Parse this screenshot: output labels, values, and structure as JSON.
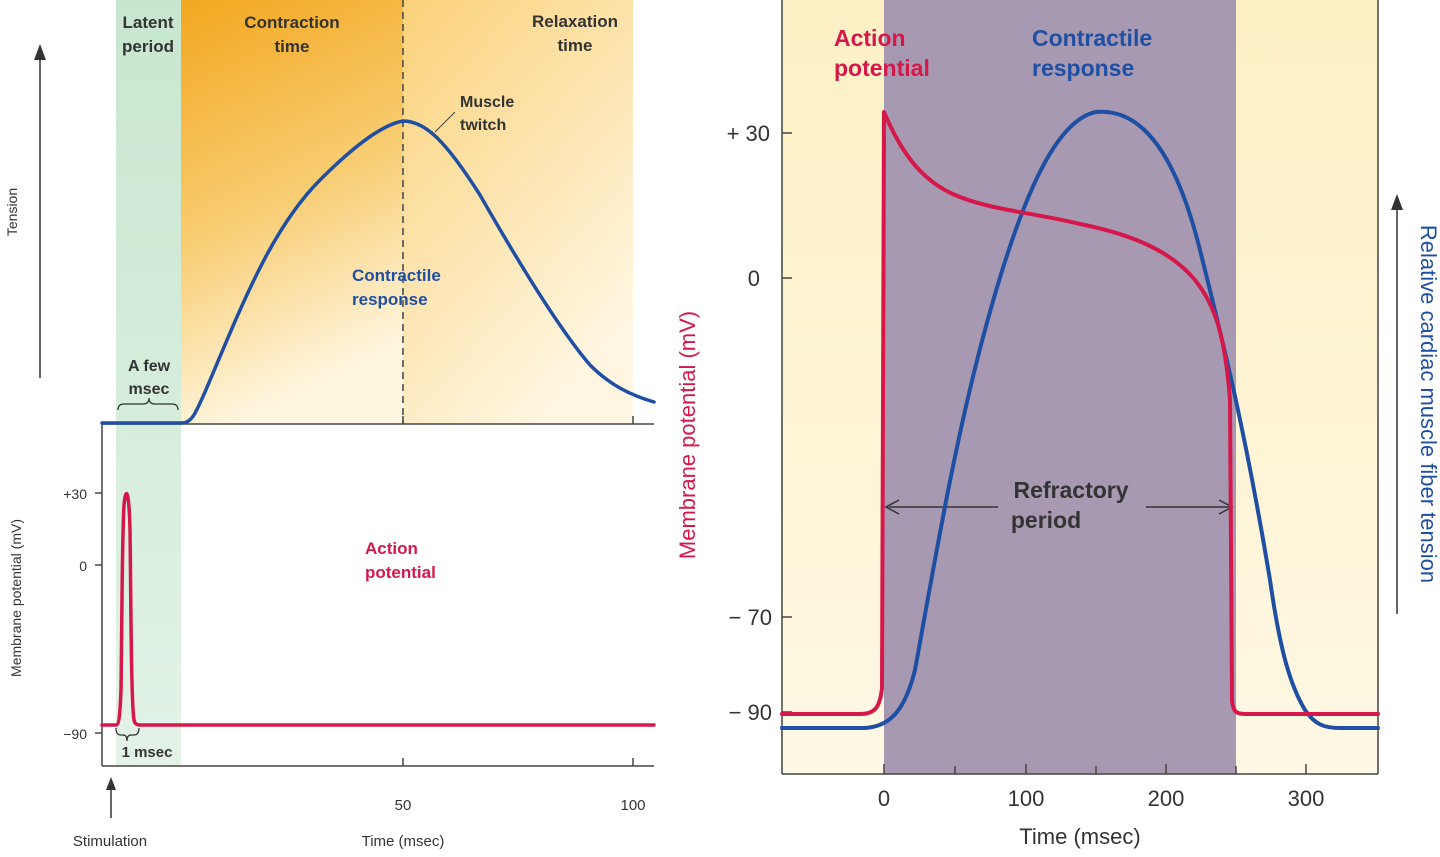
{
  "colors": {
    "action_potential": "#d6174a",
    "contractile": "#1f4fa3",
    "latent_fill": "#cfe9d5",
    "refractory_fill": "#a899b3",
    "axis": "#444444",
    "text": "#333333"
  },
  "left": {
    "phases": {
      "latent": [
        "Latent",
        "period"
      ],
      "contraction": [
        "Contraction",
        "time"
      ],
      "relaxation": [
        "Relaxation",
        "time"
      ]
    },
    "labels": {
      "tension": "Tension",
      "muscle_twitch": [
        "Muscle",
        "twitch"
      ],
      "contractile_response": [
        "Contractile",
        "response"
      ],
      "action_potential": [
        "Action",
        "potential"
      ],
      "a_few_msec": [
        "A few",
        "msec"
      ],
      "one_msec": "1 msec",
      "membrane_potential": "Membrane potential (mV)",
      "stimulation": "Stimulation",
      "time": "Time (msec)"
    },
    "ticks_x": [
      "50",
      "100"
    ],
    "ticks_y": [
      "+30",
      "0",
      "−90"
    ]
  },
  "right": {
    "labels": {
      "action_potential": [
        "Action",
        "potential"
      ],
      "contractile_response": [
        "Contractile",
        "response"
      ],
      "refractory": [
        "Refractory",
        "period"
      ],
      "y_left": "Membrane potential (mV)",
      "y_right": "Relative cardiac muscle fiber tension",
      "time": "Time (msec)"
    },
    "ticks_x": [
      "0",
      "100",
      "200",
      "300"
    ],
    "ticks_y": [
      "+ 30",
      "0",
      "− 70",
      "− 90"
    ]
  },
  "chart_data": [
    {
      "type": "line",
      "title": "",
      "xlabel": "Time (msec)",
      "ylabel": "Tension",
      "xlim": [
        -8,
        100
      ],
      "series": [
        {
          "name": "Contractile response",
          "x": [
            -8,
            10,
            13,
            20,
            30,
            40,
            45,
            50,
            55,
            60,
            70,
            80,
            90,
            95,
            100
          ],
          "y": [
            0,
            0,
            0.04,
            0.3,
            0.6,
            0.85,
            0.95,
            1.0,
            0.96,
            0.86,
            0.6,
            0.36,
            0.17,
            0.1,
            0.08
          ]
        }
      ]
    },
    {
      "type": "line",
      "xlabel": "",
      "ylabel": "Membrane potential (mV)",
      "ylim": [
        -90,
        30
      ],
      "series": [
        {
          "name": "Action potential",
          "x": [
            -8,
            2,
            3,
            4,
            5,
            6,
            7,
            100
          ],
          "y": [
            -90,
            -90,
            -60,
            30,
            20,
            -60,
            -90,
            -90
          ]
        }
      ]
    },
    {
      "type": "line",
      "xlabel": "Time (msec)",
      "ylabel": "Membrane potential (mV)",
      "xlim": [
        -70,
        350
      ],
      "yticks": [
        30,
        0,
        -70,
        -90
      ],
      "series": [
        {
          "name": "Action potential",
          "x": [
            -70,
            -10,
            0,
            0,
            20,
            60,
            100,
            140,
            180,
            200,
            220,
            235,
            245,
            250,
            252,
            260,
            350
          ],
          "y": [
            -90,
            -90,
            -85,
            35,
            25,
            17,
            14,
            11,
            6,
            0,
            -10,
            -30,
            -70,
            -88,
            -90,
            -90,
            -90
          ]
        },
        {
          "name": "Contractile response",
          "x": [
            -70,
            -10,
            5,
            15,
            20,
            40,
            60,
            80,
            100,
            120,
            150,
            180,
            200,
            220,
            240,
            260,
            280,
            290,
            300,
            320,
            350
          ],
          "y": [
            0,
            0.01,
            0.05,
            0.15,
            0.25,
            0.5,
            0.72,
            0.85,
            0.94,
            0.98,
            1.0,
            0.97,
            0.9,
            0.78,
            0.58,
            0.33,
            0.12,
            0.06,
            0.03,
            0.0,
            0.0
          ]
        }
      ]
    }
  ]
}
